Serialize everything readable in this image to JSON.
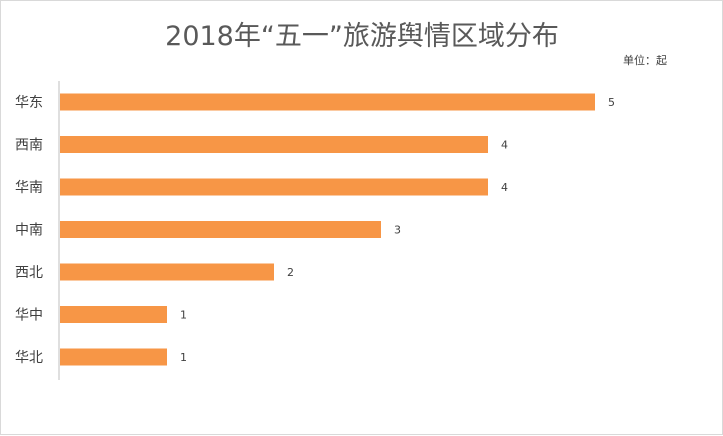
{
  "chart_data": {
    "type": "bar",
    "orientation": "horizontal",
    "title": "2018年“五一”旅游舆情区域分布",
    "unit_label": "单位：起",
    "categories": [
      "华东",
      "西南",
      "华南",
      "中南",
      "西北",
      "华中",
      "华北"
    ],
    "values": [
      5,
      4,
      4,
      3,
      2,
      1,
      1
    ],
    "xlim": [
      0,
      5
    ],
    "grid": false,
    "legend": "none",
    "bar_color": "#f79646"
  }
}
